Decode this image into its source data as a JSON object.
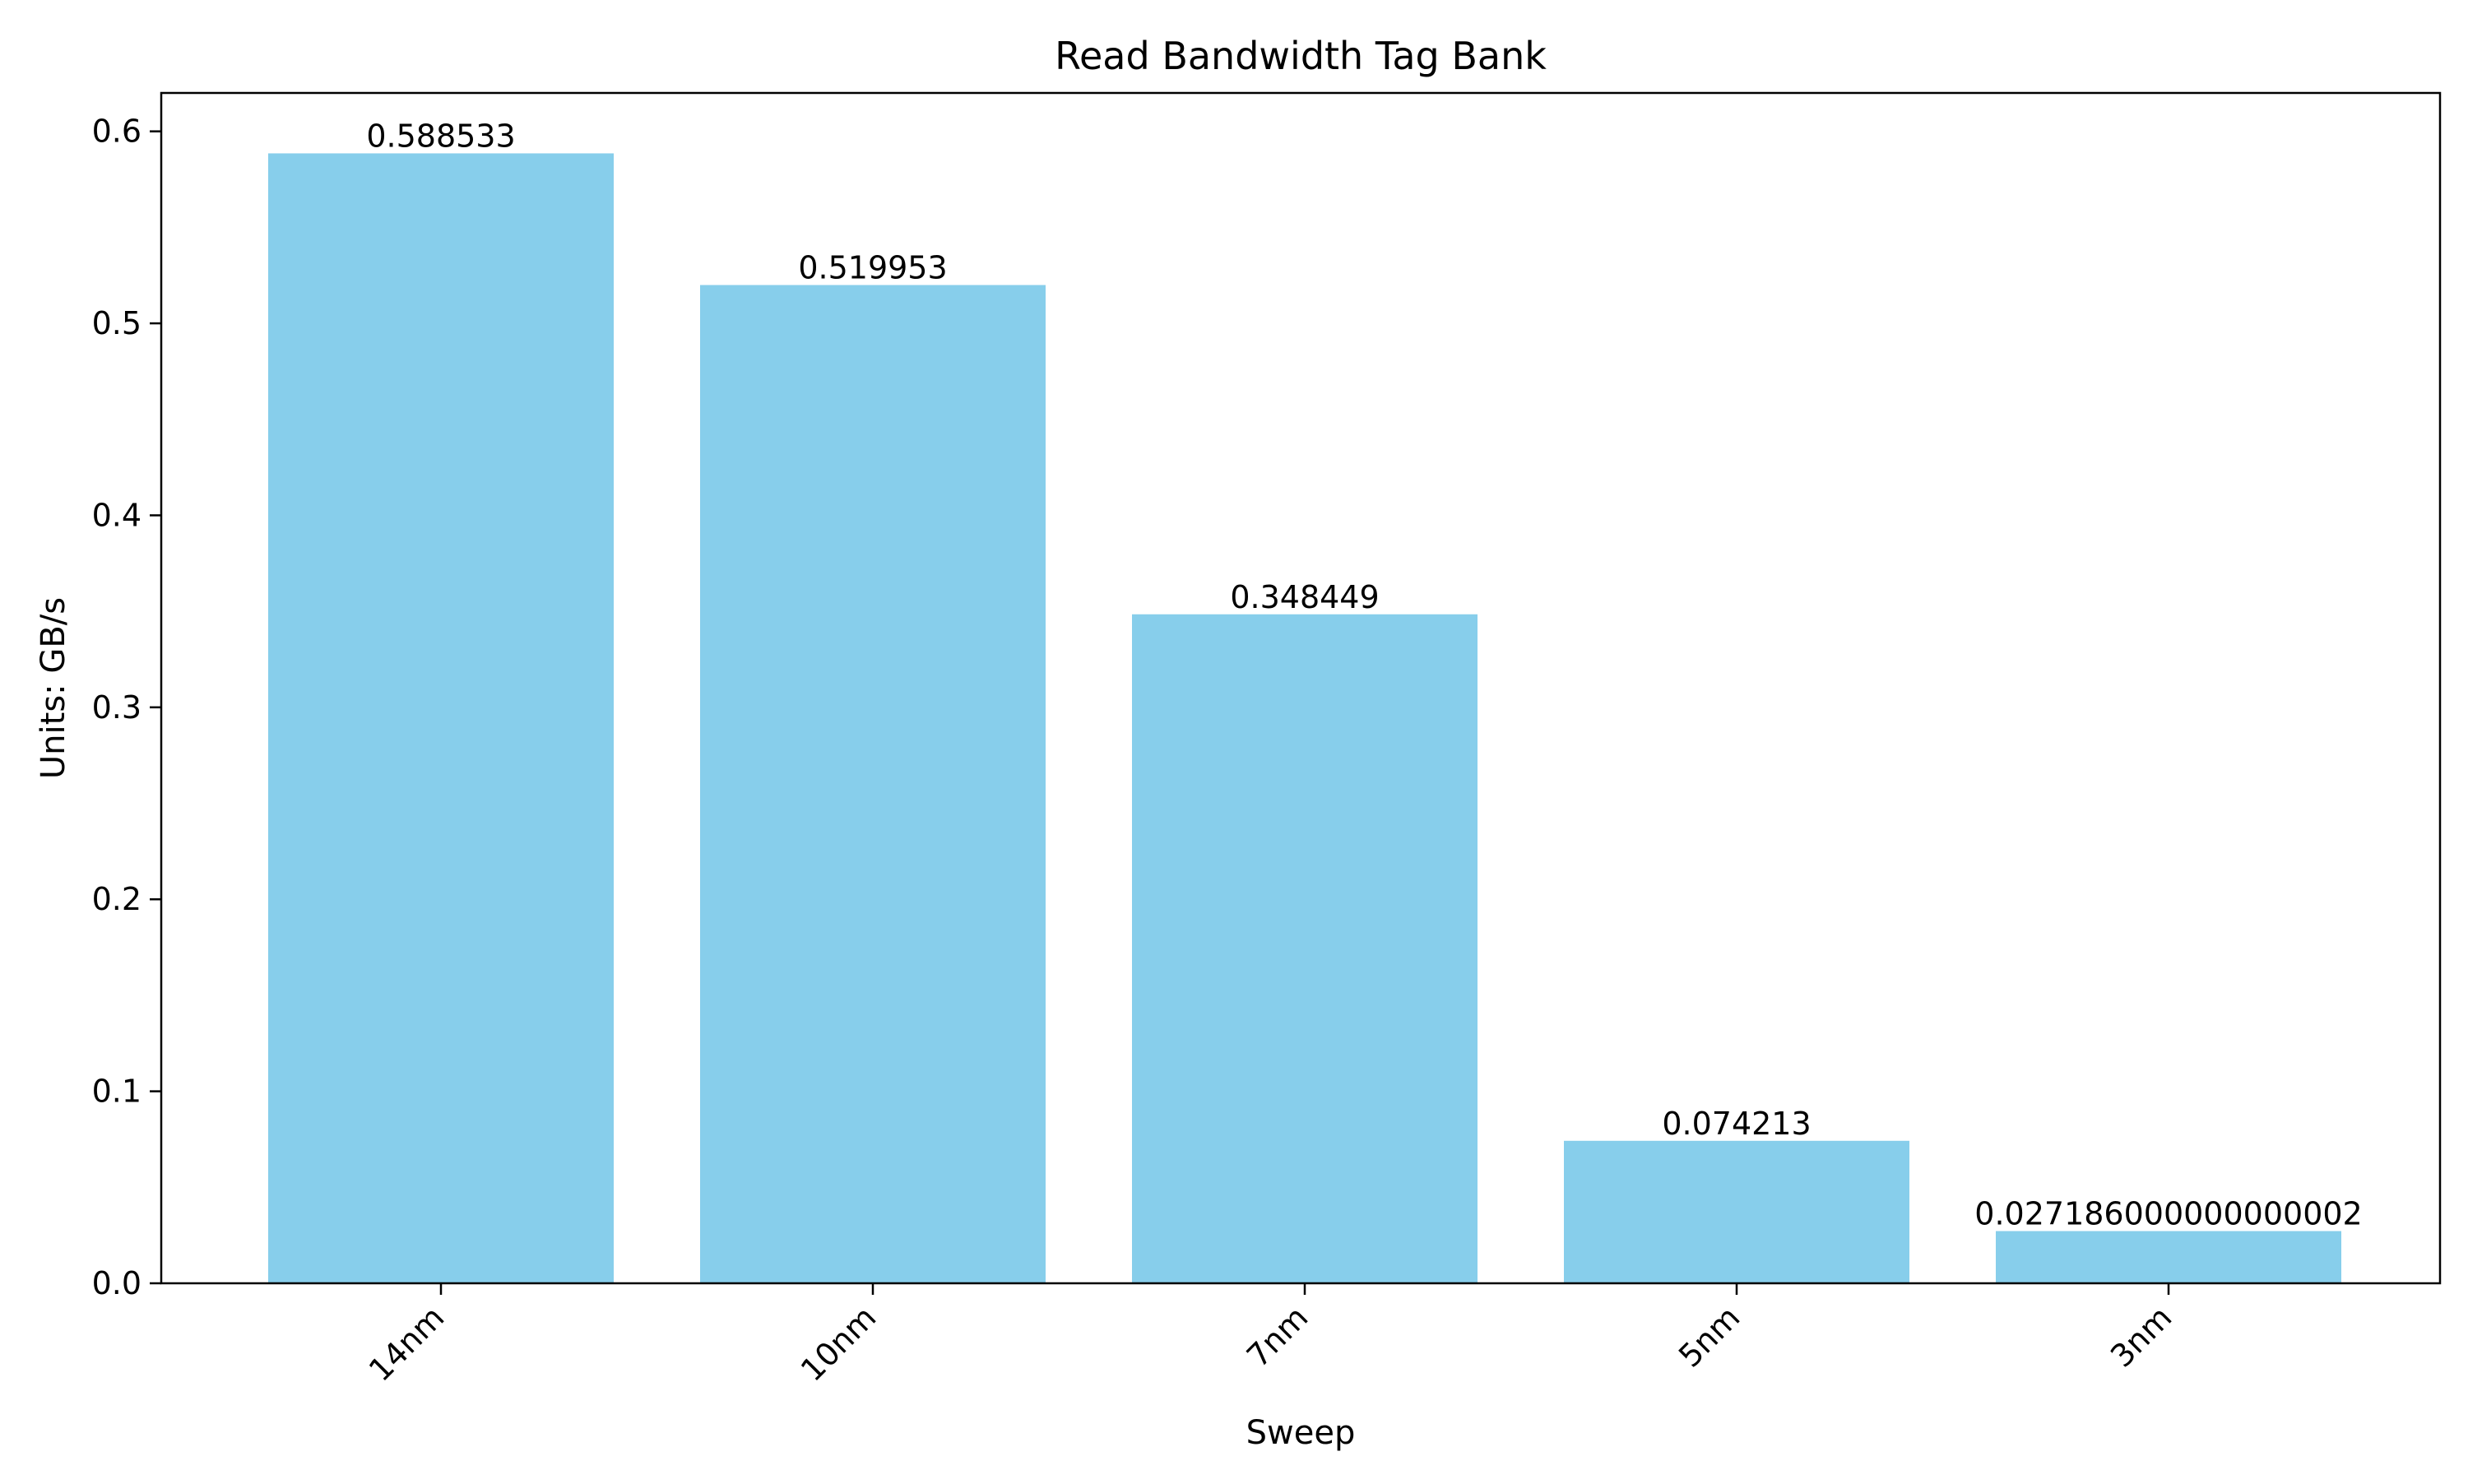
{
  "chart_data": {
    "type": "bar",
    "title": "Read Bandwidth Tag Bank",
    "xlabel": "Sweep",
    "ylabel": "Units: GB/s",
    "categories": [
      "14nm",
      "10nm",
      "7nm",
      "5nm",
      "3nm"
    ],
    "values": [
      0.588533,
      0.519953,
      0.348449,
      0.074213,
      0.027186000000000002
    ],
    "value_labels": [
      "0.588533",
      "0.519953",
      "0.348449",
      "0.074213",
      "0.027186000000000002"
    ],
    "ylim": [
      0,
      0.62
    ],
    "yticks": [
      0.0,
      0.1,
      0.2,
      0.3,
      0.4,
      0.5,
      0.6
    ],
    "ytick_labels": [
      "0.0",
      "0.1",
      "0.2",
      "0.3",
      "0.4",
      "0.5",
      "0.6"
    ],
    "bar_color": "#87ceeb",
    "grid": false,
    "legend": "none",
    "xtick_rotation": "45 degrees"
  }
}
